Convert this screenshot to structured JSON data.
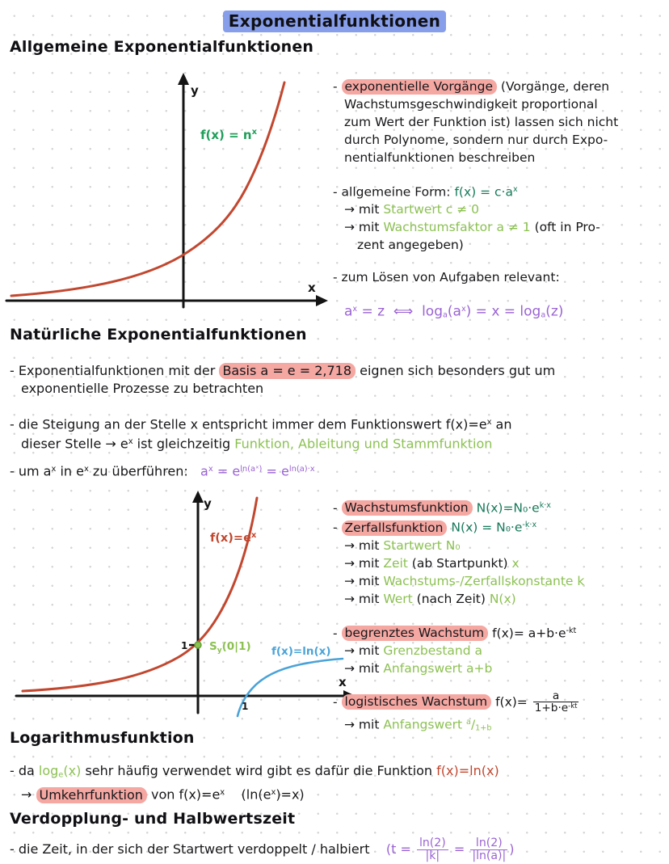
{
  "page_title": "Exponentialfunktionen",
  "colors": {
    "title_highlight": "#6d89e6",
    "phrase_highlight": "#f5a7a2",
    "ink": "#17171a",
    "red_curve": "#c2472f",
    "blue_curve": "#4aa3d8",
    "green_label": "#1f9e5a",
    "light_green": "#8cc152",
    "dark_green_formula": "#17795a",
    "purple_formula": "#9a63d3"
  },
  "headings": {
    "h1": "Allgemeine Exponentialfunktionen",
    "h2": "Natürliche Exponentialfunktionen",
    "h3": "Logarithmusfunktion",
    "h4": "Verdopplung- und Halbwertszeit"
  },
  "graphs": {
    "g1": {
      "y_label": "y",
      "x_label": "x",
      "curve_label_base": "f(x) = n",
      "curve_label_sup": "x"
    },
    "g2": {
      "y_label": "y",
      "x_label": "x",
      "exp_label_base": "f(x)=e",
      "exp_label_sup": "x",
      "ln_label": "f(x)=ln(x)",
      "point_s": "S",
      "point_sub": "y",
      "point_rest": "(0|1)",
      "tick_one_y": "1",
      "tick_one_x": "1"
    }
  },
  "notes1": {
    "lines": [
      {
        "seg": [
          {
            "t": "- "
          },
          {
            "t": "exponentielle Vorgänge",
            "c": "hp"
          },
          {
            "t": " (Vorgänge, deren"
          }
        ]
      },
      {
        "i": 1,
        "seg": [
          {
            "t": "Wachstumsgeschwindigkeit proportional"
          }
        ]
      },
      {
        "i": 1,
        "seg": [
          {
            "t": "zum Wert der Funktion ist) lassen sich nicht"
          }
        ]
      },
      {
        "i": 1,
        "seg": [
          {
            "t": "durch Polynome, sondern nur durch Expo-"
          }
        ]
      },
      {
        "i": 1,
        "seg": [
          {
            "t": "nentialfunktionen beschreiben"
          }
        ]
      },
      {
        "g": 1,
        "seg": [
          {
            "t": "- allgemeine Form: "
          },
          {
            "t": "f(x) = c·a",
            "c": "dg"
          },
          {
            "t": "x",
            "c": "dg sup"
          }
        ]
      },
      {
        "i": 1,
        "seg": [
          {
            "t": "→ mit "
          },
          {
            "t": "Startwert c ≠ 0",
            "c": "g"
          }
        ]
      },
      {
        "i": 1,
        "seg": [
          {
            "t": "→ mit "
          },
          {
            "t": "Wachstumsfaktor a ≠ 1",
            "c": "g"
          },
          {
            "t": " (oft in Pro-"
          }
        ]
      },
      {
        "i": 2,
        "seg": [
          {
            "t": "zent angegeben)"
          }
        ]
      },
      {
        "g": 1,
        "seg": [
          {
            "t": "- zum Lösen von Aufgaben relevant:"
          }
        ]
      },
      {
        "g": 1,
        "i": 1,
        "seg": [
          {
            "t": "a",
            "c": "p big"
          },
          {
            "t": "x",
            "c": "p sup"
          },
          {
            "t": " = z  ⟺  log",
            "c": "p big"
          },
          {
            "t": "a",
            "c": "p sub"
          },
          {
            "t": "(a",
            "c": "p big"
          },
          {
            "t": "x",
            "c": "p sup"
          },
          {
            "t": ") = x = log",
            "c": "p big"
          },
          {
            "t": "a",
            "c": "p sub"
          },
          {
            "t": "(z)",
            "c": "p big"
          }
        ]
      }
    ]
  },
  "para1": {
    "lines": [
      {
        "seg": [
          {
            "t": "- Exponentialfunktionen mit der "
          },
          {
            "t": "Basis a = e = 2,718",
            "c": "hp"
          },
          {
            "t": " eignen sich besonders gut um"
          }
        ]
      },
      {
        "i": 1,
        "seg": [
          {
            "t": "exponentielle Prozesse zu betrachten"
          }
        ]
      }
    ]
  },
  "para2": {
    "lines": [
      {
        "seg": [
          {
            "t": "- die Steigung an der Stelle x entspricht immer dem Funktionswert "
          },
          {
            "t": "f(x)=e"
          },
          {
            "t": "x",
            "c": "sup"
          },
          {
            "t": " an"
          }
        ]
      },
      {
        "i": 1,
        "seg": [
          {
            "t": "dieser Stelle → e"
          },
          {
            "t": "x",
            "c": "sup"
          },
          {
            "t": " ist gleichzeitig "
          },
          {
            "t": "Funktion, Ableitung und Stammfunktion",
            "c": "g"
          }
        ]
      }
    ]
  },
  "para3": {
    "lines": [
      {
        "seg": [
          {
            "t": "- um a"
          },
          {
            "t": "x",
            "c": "sup"
          },
          {
            "t": " in e"
          },
          {
            "t": "x",
            "c": "sup"
          },
          {
            "t": " zu überführen:   "
          },
          {
            "t": "a",
            "c": "p"
          },
          {
            "t": "x",
            "c": "p sup"
          },
          {
            "t": " = e",
            "c": "p"
          },
          {
            "t": "ln(aˣ)",
            "c": "p sup"
          },
          {
            "t": " = e",
            "c": "p"
          },
          {
            "t": "ln(a)·x",
            "c": "p sup"
          }
        ]
      }
    ]
  },
  "notes2": {
    "lines": [
      {
        "seg": [
          {
            "t": "- "
          },
          {
            "t": "Wachstumsfunktion",
            "c": "hp"
          },
          {
            "t": " "
          },
          {
            "t": "N(x)=N₀·e",
            "c": "dg"
          },
          {
            "t": "k·x",
            "c": "dg sup"
          }
        ]
      },
      {
        "seg": [
          {
            "t": "- "
          },
          {
            "t": "Zerfallsfunktion",
            "c": "hp"
          },
          {
            "t": " "
          },
          {
            "t": "N(x) = N₀·e",
            "c": "dg"
          },
          {
            "t": "-k·x",
            "c": "dg sup"
          }
        ]
      },
      {
        "i": 1,
        "seg": [
          {
            "t": "→ mit "
          },
          {
            "t": "Startwert N₀",
            "c": "g"
          }
        ]
      },
      {
        "i": 1,
        "seg": [
          {
            "t": "→ mit "
          },
          {
            "t": "Zeit",
            "c": "g"
          },
          {
            "t": " (ab Startpunkt) "
          },
          {
            "t": "x",
            "c": "g"
          }
        ]
      },
      {
        "i": 1,
        "seg": [
          {
            "t": "→ mit "
          },
          {
            "t": "Wachstums-/Zerfallskonstante k",
            "c": "g"
          }
        ]
      },
      {
        "i": 1,
        "seg": [
          {
            "t": "→ mit "
          },
          {
            "t": "Wert",
            "c": "g"
          },
          {
            "t": " (nach Zeit) "
          },
          {
            "t": "N(x)",
            "c": "g"
          }
        ]
      },
      {
        "g": 1,
        "seg": [
          {
            "t": "- "
          },
          {
            "t": "begrenztes Wachstum",
            "c": "hp"
          },
          {
            "t": " "
          },
          {
            "t": "f(x)= a+b·e"
          },
          {
            "t": "-kt",
            "c": "sup"
          }
        ]
      },
      {
        "i": 1,
        "seg": [
          {
            "t": "→ mit "
          },
          {
            "t": "Grenzbestand a",
            "c": "g"
          }
        ]
      },
      {
        "i": 1,
        "seg": [
          {
            "t": "→ mit "
          },
          {
            "t": "Anfangswert a+b",
            "c": "g"
          }
        ]
      },
      {
        "g": 2,
        "seg": [
          {
            "t": "- "
          },
          {
            "t": "logistisches Wachstum",
            "c": "hp"
          },
          {
            "t": " "
          },
          {
            "t": "f(x)= "
          },
          {
            "n": "a",
            "d": "1+b·e",
            "ds": "-kt",
            "c": "k"
          }
        ]
      },
      {
        "i": 1,
        "seg": [
          {
            "t": "→ mit "
          },
          {
            "t": "Anfangswert ",
            "c": "g"
          },
          {
            "t": "a",
            "c": "g sup"
          },
          {
            "t": "/",
            "c": "g"
          },
          {
            "t": "1+b",
            "c": "g sub"
          }
        ]
      }
    ]
  },
  "log_section": {
    "lines": [
      {
        "seg": [
          {
            "t": "- da "
          },
          {
            "t": "log",
            "c": "g"
          },
          {
            "t": "e",
            "c": "g sub"
          },
          {
            "t": "(x)",
            "c": "g"
          },
          {
            "t": " sehr häufig verwendet wird gibt es dafür die Funktion "
          },
          {
            "t": "f(x)=ln(x)",
            "c": "r"
          }
        ]
      },
      {
        "i": 1,
        "seg": [
          {
            "t": "→ "
          },
          {
            "t": "Umkehrfunktion",
            "c": "hp"
          },
          {
            "t": " von f(x)=e"
          },
          {
            "t": "x",
            "c": "sup"
          },
          {
            "t": "    (ln(e"
          },
          {
            "t": "x",
            "c": "sup"
          },
          {
            "t": ")=x)"
          }
        ]
      }
    ]
  },
  "verdopplung": {
    "lines": [
      {
        "seg": [
          {
            "t": "- die Zeit, in der sich der Startwert verdoppelt / halbiert    "
          },
          {
            "t": "(t = ",
            "c": "p"
          },
          {
            "n": "ln(2)",
            "d": "|k|",
            "c": "p"
          },
          {
            "t": " = ",
            "c": "p"
          },
          {
            "n": "ln(2)",
            "d": "|ln(a)|",
            "c": "p"
          },
          {
            "t": ")",
            "c": "p"
          }
        ]
      }
    ]
  }
}
